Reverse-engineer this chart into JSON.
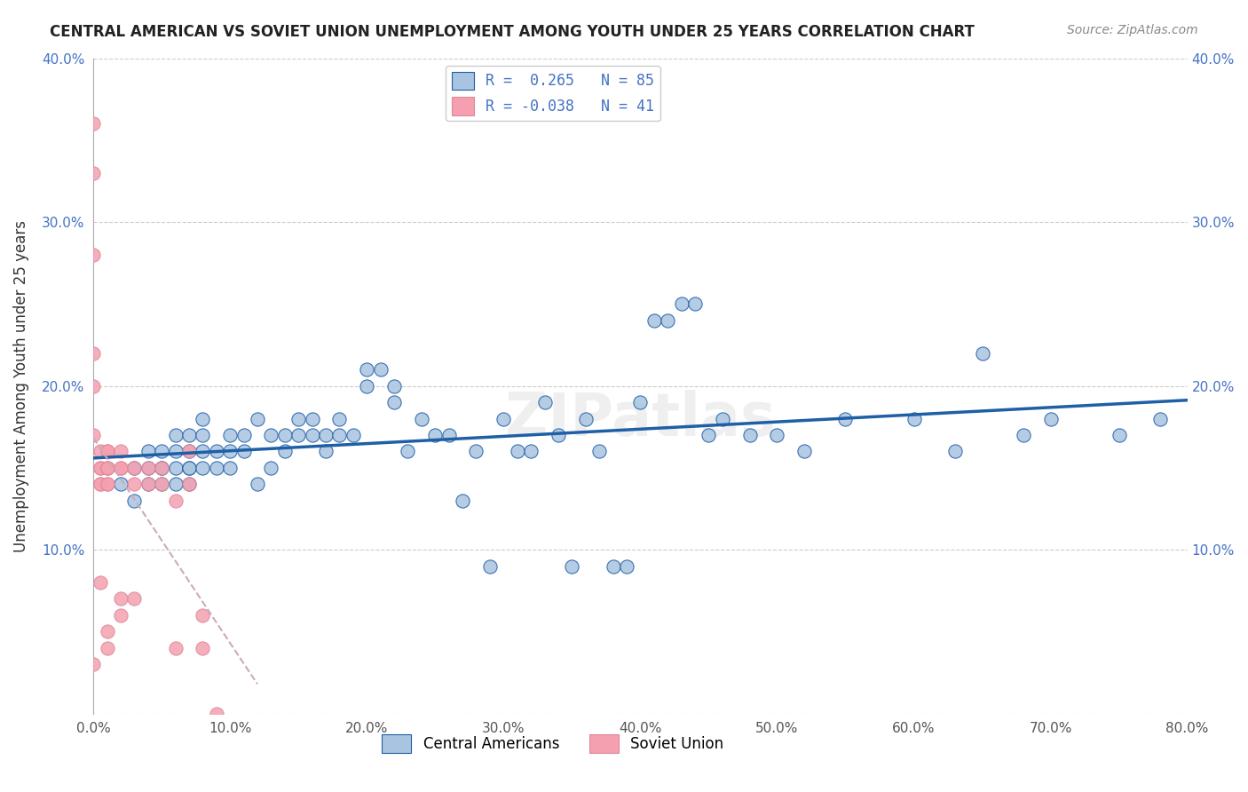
{
  "title": "CENTRAL AMERICAN VS SOVIET UNION UNEMPLOYMENT AMONG YOUTH UNDER 25 YEARS CORRELATION CHART",
  "source": "Source: ZipAtlas.com",
  "ylabel": "Unemployment Among Youth under 25 years",
  "xlabel": "",
  "xlim": [
    0,
    0.8
  ],
  "ylim": [
    0,
    0.4
  ],
  "xticks": [
    0.0,
    0.1,
    0.2,
    0.3,
    0.4,
    0.5,
    0.6,
    0.7,
    0.8
  ],
  "yticks": [
    0.0,
    0.1,
    0.2,
    0.3,
    0.4
  ],
  "ytick_labels": [
    "",
    "10.0%",
    "20.0%",
    "30.0%",
    "40.0%"
  ],
  "xtick_labels": [
    "0.0%",
    "10.0%",
    "20.0%",
    "30.0%",
    "40.0%",
    "50.0%",
    "60.0%",
    "70.0%",
    "80.0%"
  ],
  "blue_R": 0.265,
  "blue_N": 85,
  "pink_R": -0.038,
  "pink_N": 41,
  "watermark": "ZIPatlas",
  "blue_color": "#a8c4e0",
  "blue_line_color": "#1f5fa6",
  "pink_color": "#f4a0b0",
  "pink_line_color": "#d4a0b0",
  "legend_label_blue": "Central Americans",
  "legend_label_pink": "Soviet Union",
  "blue_scatter_x": [
    0.02,
    0.03,
    0.03,
    0.04,
    0.04,
    0.04,
    0.05,
    0.05,
    0.05,
    0.05,
    0.06,
    0.06,
    0.06,
    0.06,
    0.07,
    0.07,
    0.07,
    0.07,
    0.07,
    0.08,
    0.08,
    0.08,
    0.08,
    0.09,
    0.09,
    0.1,
    0.1,
    0.1,
    0.11,
    0.11,
    0.12,
    0.12,
    0.13,
    0.13,
    0.14,
    0.14,
    0.15,
    0.15,
    0.16,
    0.16,
    0.17,
    0.17,
    0.18,
    0.18,
    0.19,
    0.2,
    0.2,
    0.21,
    0.22,
    0.22,
    0.23,
    0.24,
    0.25,
    0.26,
    0.27,
    0.28,
    0.29,
    0.3,
    0.31,
    0.32,
    0.33,
    0.34,
    0.35,
    0.36,
    0.37,
    0.38,
    0.39,
    0.4,
    0.41,
    0.42,
    0.43,
    0.44,
    0.45,
    0.46,
    0.48,
    0.5,
    0.52,
    0.55,
    0.6,
    0.63,
    0.65,
    0.68,
    0.7,
    0.75,
    0.78
  ],
  "blue_scatter_y": [
    0.14,
    0.13,
    0.15,
    0.14,
    0.15,
    0.16,
    0.14,
    0.15,
    0.16,
    0.15,
    0.14,
    0.15,
    0.16,
    0.17,
    0.14,
    0.15,
    0.16,
    0.17,
    0.15,
    0.15,
    0.16,
    0.17,
    0.18,
    0.15,
    0.16,
    0.17,
    0.16,
    0.15,
    0.17,
    0.16,
    0.14,
    0.18,
    0.15,
    0.17,
    0.16,
    0.17,
    0.17,
    0.18,
    0.17,
    0.18,
    0.17,
    0.16,
    0.17,
    0.18,
    0.17,
    0.21,
    0.2,
    0.21,
    0.2,
    0.19,
    0.16,
    0.18,
    0.17,
    0.17,
    0.13,
    0.16,
    0.09,
    0.18,
    0.16,
    0.16,
    0.19,
    0.17,
    0.09,
    0.18,
    0.16,
    0.09,
    0.09,
    0.19,
    0.24,
    0.24,
    0.25,
    0.25,
    0.17,
    0.18,
    0.17,
    0.17,
    0.16,
    0.18,
    0.18,
    0.16,
    0.22,
    0.17,
    0.18,
    0.17,
    0.18
  ],
  "pink_scatter_x": [
    0.0,
    0.0,
    0.0,
    0.0,
    0.0,
    0.0,
    0.0,
    0.005,
    0.005,
    0.005,
    0.005,
    0.005,
    0.005,
    0.01,
    0.01,
    0.01,
    0.01,
    0.01,
    0.01,
    0.01,
    0.01,
    0.01,
    0.02,
    0.02,
    0.02,
    0.02,
    0.02,
    0.03,
    0.03,
    0.03,
    0.04,
    0.04,
    0.05,
    0.05,
    0.06,
    0.06,
    0.07,
    0.07,
    0.08,
    0.08,
    0.09
  ],
  "pink_scatter_y": [
    0.36,
    0.33,
    0.28,
    0.22,
    0.2,
    0.17,
    0.03,
    0.16,
    0.15,
    0.15,
    0.14,
    0.14,
    0.08,
    0.16,
    0.16,
    0.15,
    0.15,
    0.15,
    0.14,
    0.14,
    0.05,
    0.04,
    0.16,
    0.15,
    0.15,
    0.07,
    0.06,
    0.15,
    0.14,
    0.07,
    0.15,
    0.14,
    0.15,
    0.14,
    0.13,
    0.04,
    0.14,
    0.16,
    0.04,
    0.06,
    0.0
  ]
}
